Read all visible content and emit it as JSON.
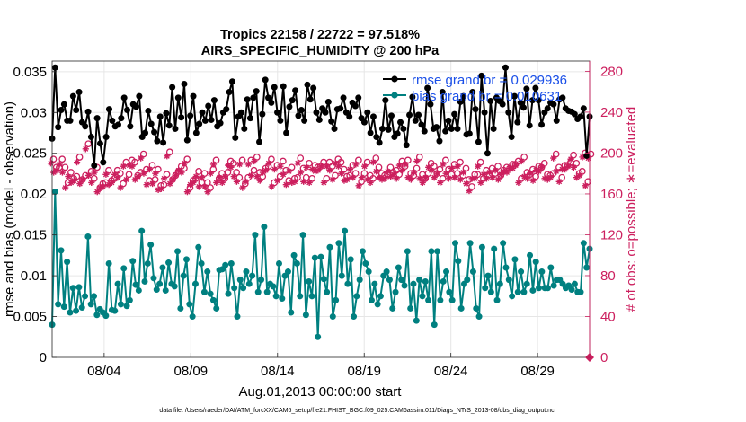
{
  "chart_data": {
    "type": "line",
    "title_line1": "Tropics 22158 / 22722 = 97.518%",
    "title_line2": "AIRS_SPECIFIC_HUMIDITY @ 200 hPa",
    "xlabel": "Aug.01,2013 00:00:00 start",
    "ylabel_left": "rmse and bias (model - observation)",
    "ylabel_right": "# of obs: o=possible; ∗=evaluated",
    "x_tick_labels": [
      "08/04",
      "08/09",
      "08/14",
      "08/19",
      "08/24",
      "08/29"
    ],
    "x_tick_days": [
      4,
      9,
      14,
      19,
      24,
      29
    ],
    "xlim": [
      1,
      32
    ],
    "ylim_left": [
      0,
      0.0363
    ],
    "ylim_right": [
      0,
      290
    ],
    "y_ticks_left": [
      0,
      0.005,
      0.01,
      0.015,
      0.02,
      0.025,
      0.03,
      0.035
    ],
    "y_tick_labels_left": [
      "0",
      "0.005",
      "0.01",
      "0.015",
      "0.02",
      "0.025",
      "0.03",
      "0.035"
    ],
    "y_ticks_right": [
      0,
      40,
      80,
      120,
      160,
      200,
      240,
      280
    ],
    "y_tick_labels_right": [
      "0",
      "40",
      "80",
      "120",
      "160",
      "200",
      "240",
      "280"
    ],
    "legend": [
      {
        "label": "rmse grand br = 0.029936"
      },
      {
        "label": "bias grand br = 0.010631"
      }
    ],
    "colors": {
      "rmse": "#000000",
      "bias": "#008080",
      "obs": "#cc1f5e",
      "legend_text": "#1a4fe8",
      "grid": "#e6e6e6"
    },
    "series": [
      {
        "name": "rmse",
        "values": [
          0.0268,
          0.0355,
          0.0282,
          0.0303,
          0.031,
          0.029,
          0.029,
          0.032,
          0.0303,
          0.0325,
          0.0288,
          0.0283,
          0.0301,
          0.027,
          0.0235,
          0.0293,
          0.0262,
          0.0239,
          0.027,
          0.0304,
          0.029,
          0.0283,
          0.0285,
          0.0293,
          0.0318,
          0.0303,
          0.0283,
          0.031,
          0.0307,
          0.032,
          0.027,
          0.0275,
          0.0302,
          0.0286,
          0.0276,
          0.0265,
          0.0295,
          0.0263,
          0.0299,
          0.0284,
          0.0331,
          0.028,
          0.0318,
          0.0294,
          0.0335,
          0.0266,
          0.0296,
          0.032,
          0.0275,
          0.0286,
          0.03,
          0.029,
          0.0308,
          0.0291,
          0.0315,
          0.0283,
          0.0287,
          0.03,
          0.0304,
          0.0325,
          0.0338,
          0.0269,
          0.0295,
          0.03,
          0.028,
          0.0316,
          0.0293,
          0.0318,
          0.0326,
          0.0264,
          0.0298,
          0.034,
          0.0318,
          0.0312,
          0.0331,
          0.03,
          0.029,
          0.0332,
          0.0275,
          0.0307,
          0.0315,
          0.0327,
          0.0296,
          0.0303,
          0.029,
          0.0334,
          0.0316,
          0.033,
          0.03,
          0.0291,
          0.0305,
          0.03,
          0.0313,
          0.0289,
          0.028,
          0.0304,
          0.0305,
          0.0318,
          0.03,
          0.0295,
          0.0312,
          0.0308,
          0.0318,
          0.0293,
          0.0288,
          0.03,
          0.0275,
          0.0295,
          0.027,
          0.0263,
          0.028,
          0.0315,
          0.0279,
          0.0296,
          0.027,
          0.0274,
          0.0288,
          0.028,
          0.026,
          0.0297,
          0.0319,
          0.029,
          0.0297,
          0.0285,
          0.0277,
          0.033,
          0.031,
          0.028,
          0.0282,
          0.0265,
          0.0325,
          0.0277,
          0.029,
          0.028,
          0.0298,
          0.028,
          0.0313,
          0.032,
          0.0273,
          0.0274,
          0.0325,
          0.0304,
          0.0264,
          0.0345,
          0.03,
          0.025,
          0.0314,
          0.028,
          0.0318,
          0.0314,
          0.031,
          0.0355,
          0.03,
          0.027,
          0.032,
          0.0288,
          0.0312,
          0.0306,
          0.0329,
          0.0284,
          0.0315,
          0.033,
          0.0315,
          0.0285,
          0.03,
          0.0305,
          0.0312,
          0.031,
          0.029,
          0.0316,
          0.0318,
          0.0305,
          0.0302,
          0.0301,
          0.0298,
          0.0292,
          0.0295,
          0.0305,
          0.0247,
          0.0295
        ]
      },
      {
        "name": "bias",
        "values": [
          0.004,
          0.0203,
          0.0065,
          0.0131,
          0.0062,
          0.0117,
          0.0055,
          0.0085,
          0.0057,
          0.0086,
          0.0061,
          0.0075,
          0.0148,
          0.0065,
          0.0075,
          0.0052,
          0.0059,
          0.0055,
          0.0051,
          0.0115,
          0.0058,
          0.0057,
          0.009,
          0.0065,
          0.0109,
          0.0063,
          0.007,
          0.0118,
          0.0089,
          0.0082,
          0.0155,
          0.0093,
          0.0115,
          0.0138,
          0.0097,
          0.0083,
          0.009,
          0.011,
          0.0082,
          0.0116,
          0.009,
          0.0087,
          0.013,
          0.006,
          0.01,
          0.012,
          0.0065,
          0.005,
          0.009,
          0.0135,
          0.0115,
          0.008,
          0.0105,
          0.0078,
          0.007,
          0.006,
          0.0107,
          0.0108,
          0.0113,
          0.0078,
          0.0115,
          0.0085,
          0.005,
          0.0095,
          0.0085,
          0.0105,
          0.009,
          0.01,
          0.015,
          0.008,
          0.0095,
          0.016,
          0.008,
          0.009,
          0.0087,
          0.0075,
          0.0115,
          0.0072,
          0.01,
          0.0105,
          0.0055,
          0.0125,
          0.0115,
          0.0075,
          0.015,
          0.0052,
          0.0093,
          0.0075,
          0.0122,
          0.0025,
          0.0123,
          0.0096,
          0.008,
          0.0135,
          0.005,
          0.007,
          0.014,
          0.01,
          0.0155,
          0.009,
          0.012,
          0.005,
          0.0075,
          0.0095,
          0.013,
          0.0115,
          0.0105,
          0.007,
          0.009,
          0.0065,
          0.0075,
          0.01,
          0.0105,
          0.0095,
          0.006,
          0.008,
          0.011,
          0.0095,
          0.0088,
          0.013,
          0.006,
          0.009,
          0.0045,
          0.0095,
          0.0075,
          0.0093,
          0.007,
          0.013,
          0.004,
          0.013,
          0.007,
          0.0093,
          0.0105,
          0.008,
          0.007,
          0.014,
          0.0118,
          0.006,
          0.009,
          0.0095,
          0.014,
          0.0105,
          0.006,
          0.005,
          0.0135,
          0.0085,
          0.01,
          0.008,
          0.0133,
          0.007,
          0.009,
          0.014,
          0.011,
          0.0095,
          0.0075,
          0.012,
          0.008,
          0.0105,
          0.008,
          0.009,
          0.0125,
          0.0082,
          0.0117,
          0.0085,
          0.0105,
          0.0085,
          0.0085,
          0.011,
          0.0088,
          0.0095,
          0.0095,
          0.009,
          0.0085,
          0.0088,
          0.0083,
          0.009,
          0.008,
          0.008,
          0.014,
          0.011,
          0.0133
        ]
      },
      {
        "name": "obs_possible",
        "values": [
          194,
          186,
          186,
          194,
          186,
          171,
          181,
          175,
          177,
          196,
          174,
          178,
          209,
          182,
          175,
          186,
          166,
          170,
          171,
          183,
          173,
          175,
          183,
          180,
          170,
          191,
          179,
          193,
          191,
          178,
          181,
          199,
          184,
          173,
          188,
          174,
          184,
          168,
          169,
          179,
          201,
          174,
          178,
          182,
          187,
          185,
          194,
          166,
          173,
          175,
          182,
          171,
          180,
          171,
          166,
          184,
          193,
          175,
          180,
          175,
          181,
          192,
          190,
          181,
          176,
          193,
          170,
          176,
          193,
          183,
          196,
          181,
          177,
          185,
          187,
          194,
          171,
          188,
          177,
          192,
          183,
          173,
          186,
          175,
          176,
          195,
          185,
          176,
          190,
          175,
          188,
          186,
          187,
          191,
          175,
          191,
          187,
          178,
          194,
          191,
          184,
          177,
          178,
          188,
          180,
          193,
          172,
          180,
          191,
          178,
          175,
          195,
          186,
          180,
          178,
          179,
          186,
          181,
          183,
          179,
          192,
          187,
          193,
          180,
          178,
          185,
          196,
          179,
          175,
          180,
          190,
          187,
          180,
          184,
          175,
          193,
          184,
          179,
          189,
          180,
          191,
          178,
          185,
          174,
          167,
          179,
          179,
          191,
          175,
          183,
          179,
          185,
          180,
          187,
          178,
          183,
          186,
          185,
          189,
          189,
          192,
          175,
          196,
          181,
          179,
          184,
          177,
          187,
          186,
          190,
          179,
          178,
          180,
          199,
          186,
          176,
          188,
          188,
          191,
          198,
          190,
          180,
          182,
          200,
          172,
          199
        ]
      },
      {
        "name": "obs_evaluated",
        "values": [
          190,
          181,
          183,
          189,
          181,
          166,
          177,
          171,
          173,
          191,
          170,
          174,
          204,
          178,
          171,
          181,
          162,
          166,
          167,
          179,
          169,
          171,
          179,
          176,
          166,
          187,
          174,
          188,
          187,
          174,
          177,
          195,
          180,
          169,
          184,
          170,
          180,
          164,
          165,
          175,
          197,
          170,
          174,
          178,
          183,
          181,
          190,
          162,
          169,
          171,
          177,
          167,
          176,
          167,
          162,
          180,
          189,
          171,
          176,
          171,
          177,
          188,
          186,
          177,
          172,
          189,
          166,
          172,
          189,
          178,
          192,
          177,
          173,
          181,
          183,
          190,
          167,
          184,
          173,
          187,
          179,
          169,
          182,
          171,
          172,
          190,
          181,
          172,
          186,
          171,
          184,
          182,
          183,
          187,
          171,
          187,
          183,
          174,
          190,
          187,
          180,
          173,
          174,
          184,
          176,
          189,
          168,
          176,
          187,
          174,
          171,
          191,
          182,
          176,
          174,
          175,
          182,
          177,
          179,
          175,
          188,
          183,
          189,
          176,
          174,
          181,
          192,
          175,
          171,
          176,
          186,
          183,
          176,
          180,
          171,
          189,
          180,
          175,
          185,
          176,
          187,
          174,
          181,
          170,
          163,
          175,
          175,
          187,
          171,
          179,
          175,
          181,
          176,
          183,
          174,
          179,
          182,
          181,
          185,
          185,
          188,
          171,
          192,
          177,
          175,
          180,
          173,
          183,
          182,
          186,
          175,
          174,
          176,
          195,
          182,
          172,
          184,
          184,
          187,
          194,
          186,
          176,
          178,
          196,
          168,
          195
        ]
      }
    ],
    "footer": "data file: /Users/raeder/DAI/ATM_forcXX/CAM6_setup/f.e21.FHIST_BGC.f09_025.CAM6assim.011/Diags_NTrS_2013-08/obs_diag_output.nc"
  }
}
